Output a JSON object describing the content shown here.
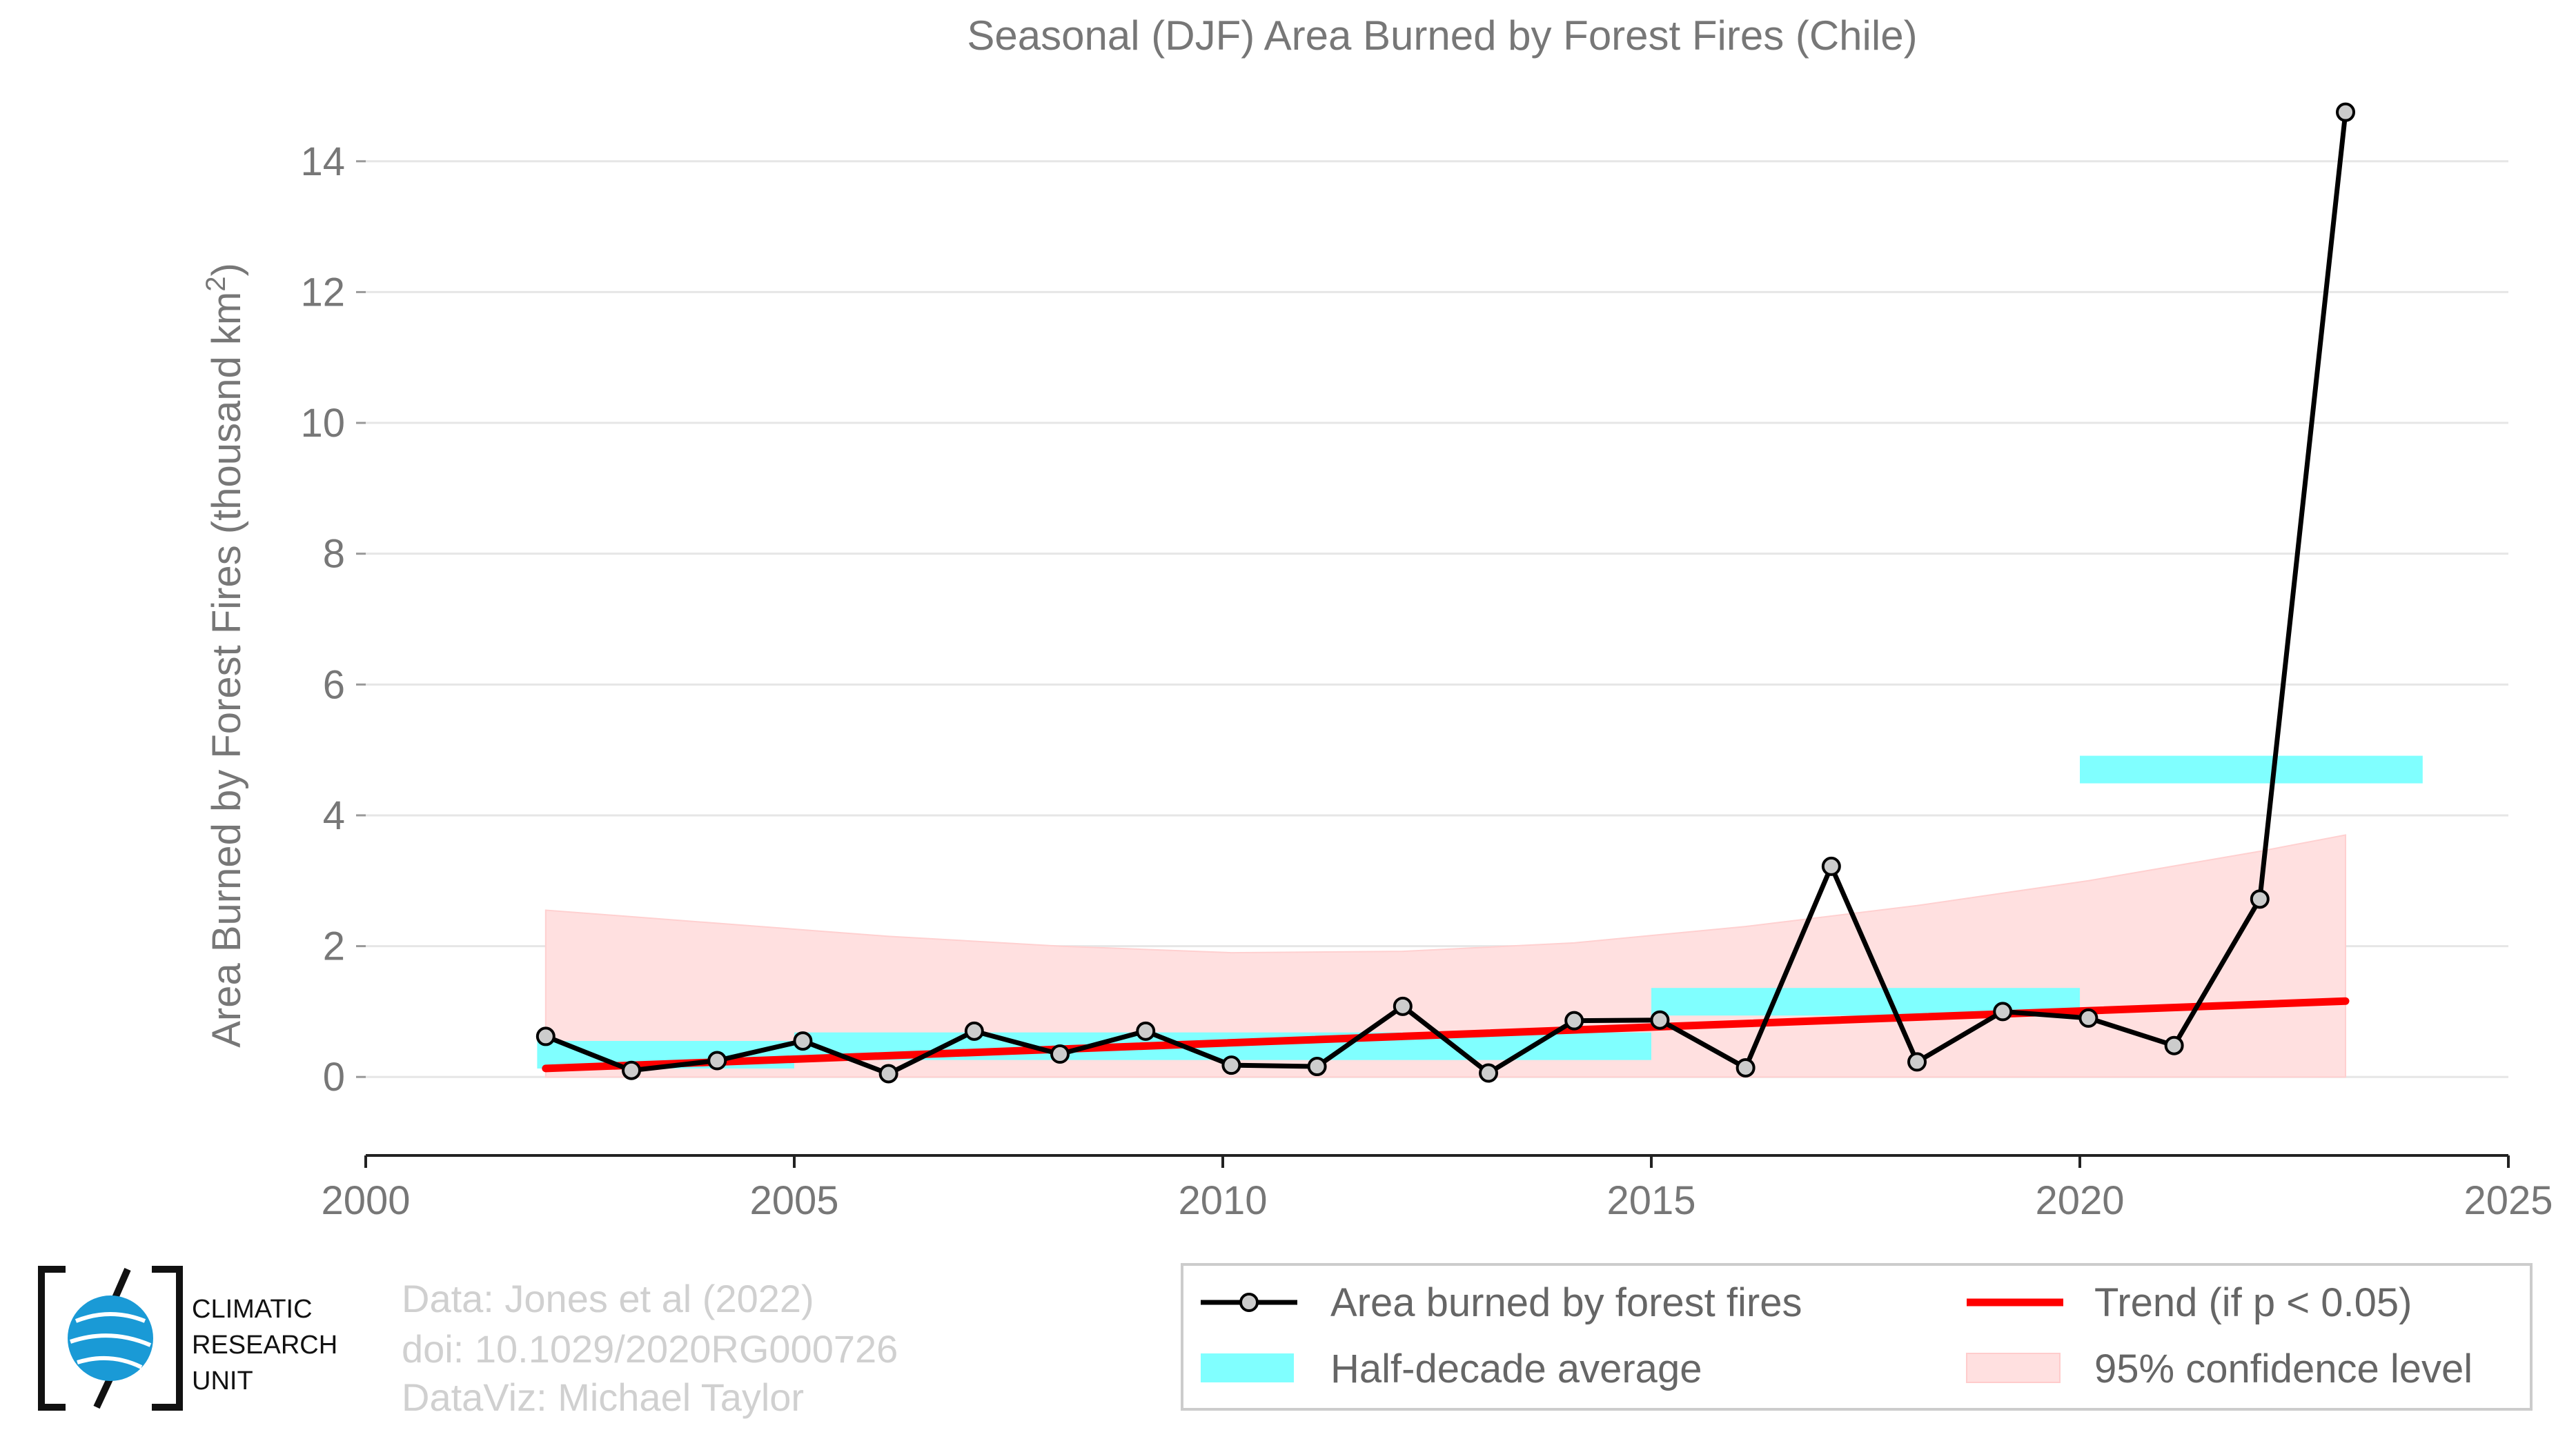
{
  "chart_data": {
    "type": "line",
    "title": "Seasonal (DJF) Area Burned by Forest Fires (Chile)",
    "xlabel": "",
    "ylabel": "Area Burned by Forest Fires (thousand km",
    "ylabel_sup": "2",
    "ylabel_close": ")",
    "xlim": [
      2000,
      2025
    ],
    "ylim": [
      -1.2,
      15.2
    ],
    "x_ticks": [
      2000,
      2005,
      2010,
      2015,
      2020,
      2025
    ],
    "y_ticks": [
      0,
      2,
      4,
      6,
      8,
      10,
      12,
      14
    ],
    "grid": "horizontal",
    "legend_position": "bottom-right",
    "series": [
      {
        "name": "Area burned by forest fires",
        "color": "#000000",
        "x": [
          2002.1,
          2003.1,
          2004.1,
          2005.1,
          2006.1,
          2007.1,
          2008.1,
          2009.1,
          2010.1,
          2011.1,
          2012.1,
          2013.1,
          2014.1,
          2015.1,
          2016.1,
          2017.1,
          2018.1,
          2019.1,
          2020.1,
          2021.1,
          2022.1,
          2023.1
        ],
        "y": [
          0.62,
          0.1,
          0.25,
          0.55,
          0.05,
          0.7,
          0.35,
          0.7,
          0.18,
          0.16,
          1.08,
          0.06,
          0.86,
          0.87,
          0.14,
          3.22,
          0.23,
          1.0,
          0.9,
          0.48,
          2.72,
          14.75
        ]
      }
    ],
    "half_decade_average": {
      "name": "Half-decade average",
      "color": "#80ffff",
      "bars": [
        {
          "x_start": 2002,
          "x_end": 2005,
          "value": 0.34
        },
        {
          "x_start": 2005,
          "x_end": 2015,
          "value": 0.47
        },
        {
          "x_start": 2015,
          "x_end": 2020,
          "value": 1.15
        },
        {
          "x_start": 2020,
          "x_end": 2024,
          "value": 4.7
        }
      ]
    },
    "trend": {
      "name": "Trend (if p < 0.05)",
      "color": "#ff0000",
      "x": [
        2002.1,
        2023.1
      ],
      "y": [
        0.13,
        1.16
      ]
    },
    "confidence": {
      "name": "95% confidence level",
      "color": "#ffe0e0",
      "x": [
        2002.1,
        2004.1,
        2006.1,
        2008.1,
        2010.1,
        2012.1,
        2014.1,
        2016.1,
        2018.1,
        2020.1,
        2022.1,
        2023.1
      ],
      "upper": [
        2.55,
        2.35,
        2.15,
        2.0,
        1.9,
        1.92,
        2.05,
        2.3,
        2.62,
        3.0,
        3.45,
        3.7
      ],
      "lower": [
        0,
        0,
        0,
        0,
        0,
        0,
        0,
        0,
        0,
        0,
        0,
        0
      ]
    }
  },
  "credits": {
    "line1": "Data: Jones et al (2022)",
    "line2": "doi: 10.1029/2020RG000726",
    "line3": "DataViz: Michael Taylor"
  },
  "logo": {
    "line1": "CLIMATIC",
    "line2": "RESEARCH",
    "line3": "UNIT"
  },
  "legend": {
    "line_label": "Area burned by forest fires",
    "trend_label": "Trend (if p < 0.05)",
    "avg_label": "Half-decade average",
    "conf_label": "95% confidence level"
  }
}
